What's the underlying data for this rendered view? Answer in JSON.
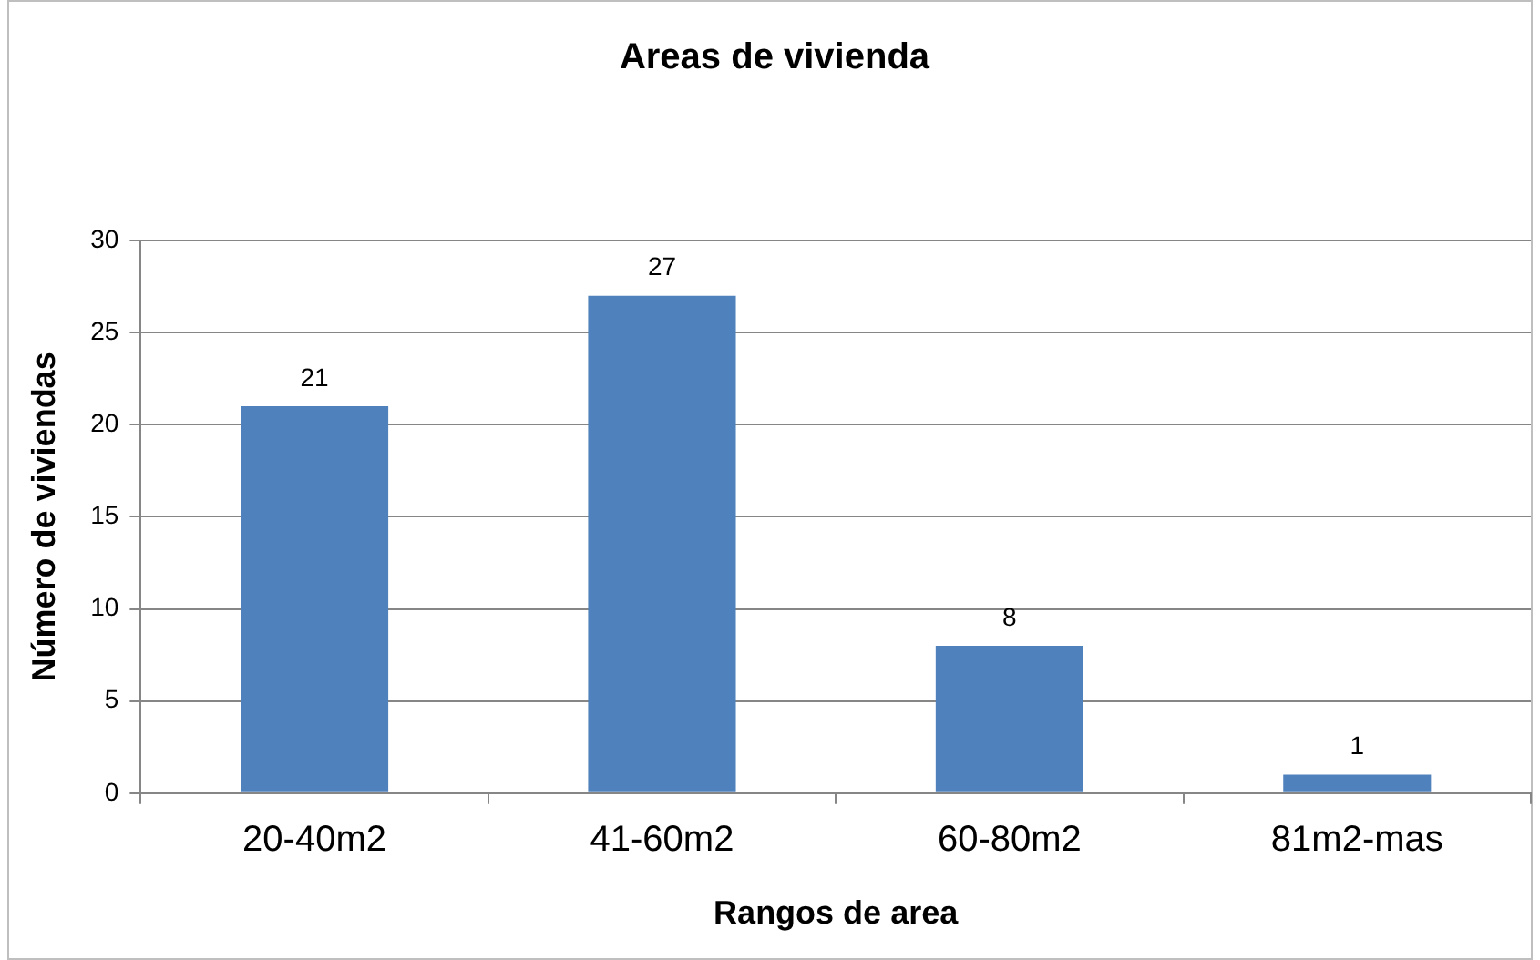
{
  "chart_data": {
    "type": "bar",
    "title": "Areas de vivienda",
    "xlabel": "Rangos de area",
    "ylabel": "Número de viviendas",
    "categories": [
      "20-40m2",
      "41-60m2",
      "60-80m2",
      "81m2-mas"
    ],
    "values": [
      21,
      27,
      8,
      1
    ],
    "color": "#4f81bd",
    "ylim": [
      0,
      30
    ],
    "yticks": [
      0,
      5,
      10,
      15,
      20,
      25,
      30
    ],
    "grid": "y",
    "legend": false,
    "data_labels": true
  }
}
